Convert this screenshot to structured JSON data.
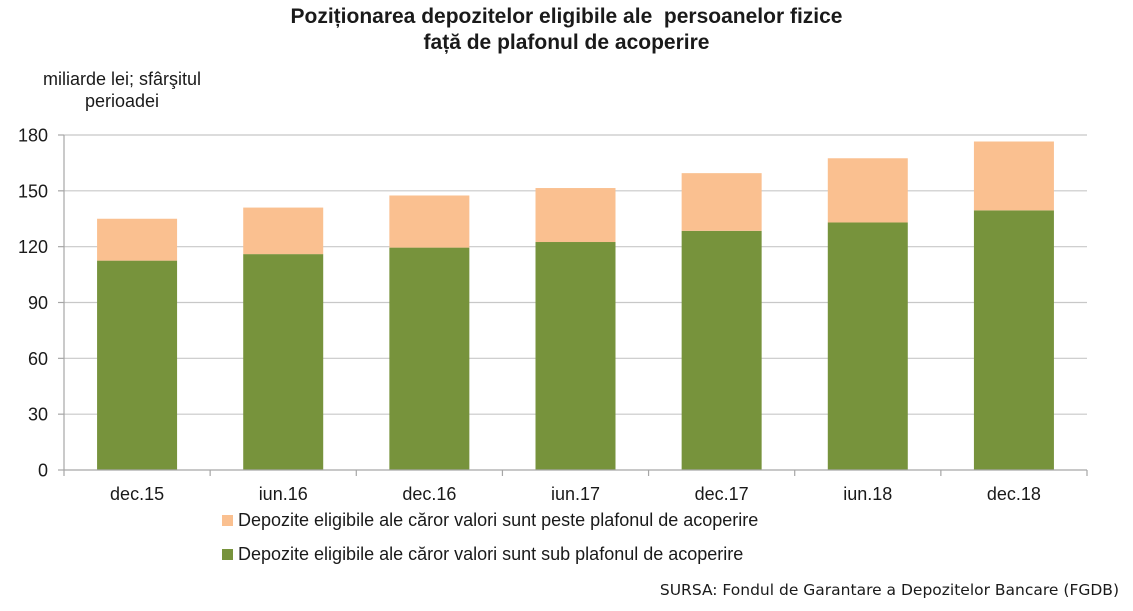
{
  "title": {
    "line1": "Poziționarea depozitelor eligibile ale  persoanelor fizice",
    "line2": "față de plafonul de acoperire"
  },
  "unit_label": {
    "line1": "miliarde lei; sfârşitul",
    "line2": "perioadei"
  },
  "chart_data": {
    "type": "bar",
    "stacked": true,
    "categories": [
      "dec.15",
      "iun.16",
      "dec.16",
      "iun.17",
      "dec.17",
      "iun.18",
      "dec.18"
    ],
    "series": [
      {
        "name": "Depozite eligibile ale căror valori sunt sub plafonul de acoperire",
        "values": [
          112.5,
          116,
          119.5,
          122.5,
          128.5,
          133,
          139.5
        ],
        "color": "#77933c"
      },
      {
        "name": "Depozite eligibile ale căror valori sunt peste plafonul de acoperire",
        "values": [
          22.5,
          25,
          28,
          29,
          31,
          34.5,
          37
        ],
        "color": "#fac090"
      }
    ],
    "ylim": [
      0,
      180
    ],
    "yticks": [
      0,
      30,
      60,
      90,
      120,
      150,
      180
    ],
    "grid": true,
    "legend_position": "bottom"
  },
  "legend": {
    "items": [
      {
        "label": "Depozite eligibile ale căror valori sunt peste plafonul de acoperire",
        "color": "#fac090"
      },
      {
        "label": "Depozite eligibile ale căror valori sunt sub plafonul de acoperire",
        "color": "#77933c"
      }
    ]
  },
  "source": "SURSA: Fondul de Garantare a Depozitelor Bancare (FGDB)"
}
